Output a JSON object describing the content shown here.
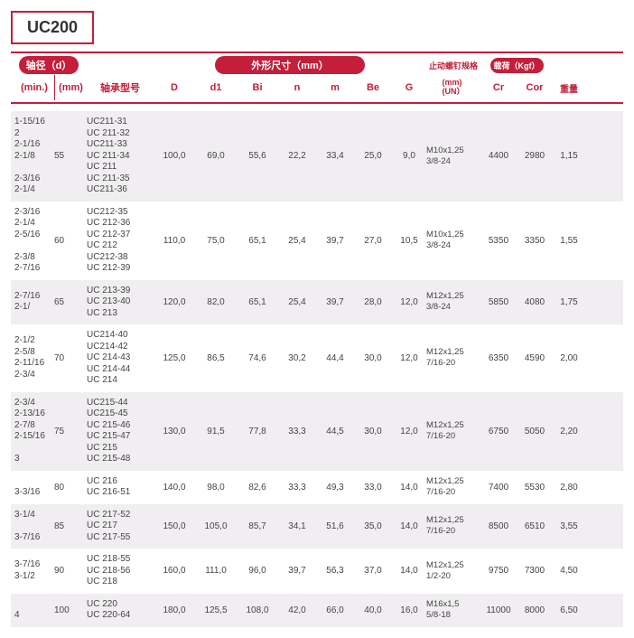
{
  "title": "UC200",
  "header": {
    "shaft_dia": "轴径（d）",
    "outer_dim": "外形尺寸（mm）",
    "screw_spec": "止动螺钉规格",
    "load": "载荷（Kgf）",
    "min": "(min.)",
    "mm": "(mm)",
    "model": "轴承型号",
    "D": "D",
    "d1": "d1",
    "Bi": "Bi",
    "n": "n",
    "m": "m",
    "Be": "Be",
    "G": "G",
    "screw_sub": "(mm)\n(UN）",
    "Cr": "Cr",
    "Cor": "Cor",
    "weight": "重量"
  },
  "rows": [
    {
      "min": [
        "1-15/16",
        "2",
        "2-1/16",
        "2-1/8",
        "",
        "2-3/16",
        "2-1/4"
      ],
      "mm": "55",
      "models": [
        "UC211-31",
        "UC 211-32",
        "UC211-33",
        "UC 211-34",
        "UC 211",
        "UC 211-35",
        "UC211-36"
      ],
      "D": "100,0",
      "d1": "69,0",
      "Bi": "55,6",
      "n": "22,2",
      "m": "33,4",
      "Be": "25,0",
      "G": "9,0",
      "screw": [
        "M10x1,25",
        "3/8-24"
      ],
      "Cr": "4400",
      "Cor": "2980",
      "wt": "1,15"
    },
    {
      "min": [
        "2-3/16",
        "2-1/4",
        "2-5/16",
        "",
        "2-3/8",
        "2-7/16"
      ],
      "mm": "60",
      "models": [
        "UC212-35",
        "UC 212-36",
        "UC 212-37",
        "UC 212",
        "UC212-38",
        "UC 212-39"
      ],
      "D": "110,0",
      "d1": "75,0",
      "Bi": "65,1",
      "n": "25,4",
      "m": "39,7",
      "Be": "27,0",
      "G": "10,5",
      "screw": [
        "M10x1,25",
        "3/8-24"
      ],
      "Cr": "5350",
      "Cor": "3350",
      "wt": "1,55"
    },
    {
      "min": [
        "2-7/16",
        "2-1/"
      ],
      "mm": "65",
      "models": [
        "UC 213-39",
        "UC 213-40",
        "UC 213"
      ],
      "D": "120,0",
      "d1": "82,0",
      "Bi": "65,1",
      "n": "25,4",
      "m": "39,7",
      "Be": "28,0",
      "G": "12,0",
      "screw": [
        "M12x1,25",
        "3/8-24"
      ],
      "Cr": "5850",
      "Cor": "4080",
      "wt": "1,75"
    },
    {
      "min": [
        "2-1/2",
        "2-5/8",
        "2-11/16",
        "2-3/4"
      ],
      "mm": "70",
      "models": [
        "UC214-40",
        "UC214-42",
        "UC 214-43",
        "UC 214-44",
        "UC 214"
      ],
      "D": "125,0",
      "d1": "86,5",
      "Bi": "74,6",
      "n": "30,2",
      "m": "44,4",
      "Be": "30,0",
      "G": "12,0",
      "screw": [
        "M12x1,25",
        "7/16-20"
      ],
      "Cr": "6350",
      "Cor": "4590",
      "wt": "2,00"
    },
    {
      "min": [
        "2-3/4",
        "2-13/16",
        "2-7/8",
        "2-15/16",
        "",
        "3"
      ],
      "mm": "75",
      "models": [
        "UC215-44",
        "UC215-45",
        "UC 215-46",
        "UC 215-47",
        "UC 215",
        "UC 215-48"
      ],
      "D": "130,0",
      "d1": "91,5",
      "Bi": "77,8",
      "n": "33,3",
      "m": "44,5",
      "Be": "30,0",
      "G": "12,0",
      "screw": [
        "M12x1,25",
        "7/16-20"
      ],
      "Cr": "6750",
      "Cor": "5050",
      "wt": "2,20"
    },
    {
      "min": [
        "",
        "3-3/16"
      ],
      "mm": "80",
      "models": [
        "UC 216",
        "UC 216-51"
      ],
      "D": "140,0",
      "d1": "98,0",
      "Bi": "82,6",
      "n": "33,3",
      "m": "49,3",
      "Be": "33,0",
      "G": "14,0",
      "screw": [
        "M12x1,25",
        "7/16-20"
      ],
      "Cr": "7400",
      "Cor": "5530",
      "wt": "2,80"
    },
    {
      "min": [
        "3-1/4",
        "",
        "3-7/16"
      ],
      "mm": "85",
      "models": [
        "UC 217-52",
        "UC 217",
        "UC 217-55"
      ],
      "D": "150,0",
      "d1": "105,0",
      "Bi": "85,7",
      "n": "34,1",
      "m": "51,6",
      "Be": "35,0",
      "G": "14,0",
      "screw": [
        "M12x1,25",
        "7/16-20"
      ],
      "Cr": "8500",
      "Cor": "6510",
      "wt": "3,55"
    },
    {
      "min": [
        "3-7/16",
        "3-1/2"
      ],
      "mm": "90",
      "models": [
        "UC 218-55",
        "UC 218-56",
        "UC 218"
      ],
      "D": "160,0",
      "d1": "111,0",
      "Bi": "96,0",
      "n": "39,7",
      "m": "56,3",
      "Be": "37,0",
      "G": "14,0",
      "screw": [
        "M12x1,25",
        "1/2-20"
      ],
      "Cr": "9750",
      "Cor": "7300",
      "wt": "4,50"
    },
    {
      "min": [
        "",
        "4"
      ],
      "mm": "100",
      "models": [
        "UC 220",
        "UC 220-64"
      ],
      "D": "180,0",
      "d1": "125,5",
      "Bi": "108,0",
      "n": "42,0",
      "m": "66,0",
      "Be": "40,0",
      "G": "16,0",
      "screw": [
        "M16x1,5",
        "5/8-18"
      ],
      "Cr": "11000",
      "Cor": "8000",
      "wt": "6,50"
    }
  ]
}
